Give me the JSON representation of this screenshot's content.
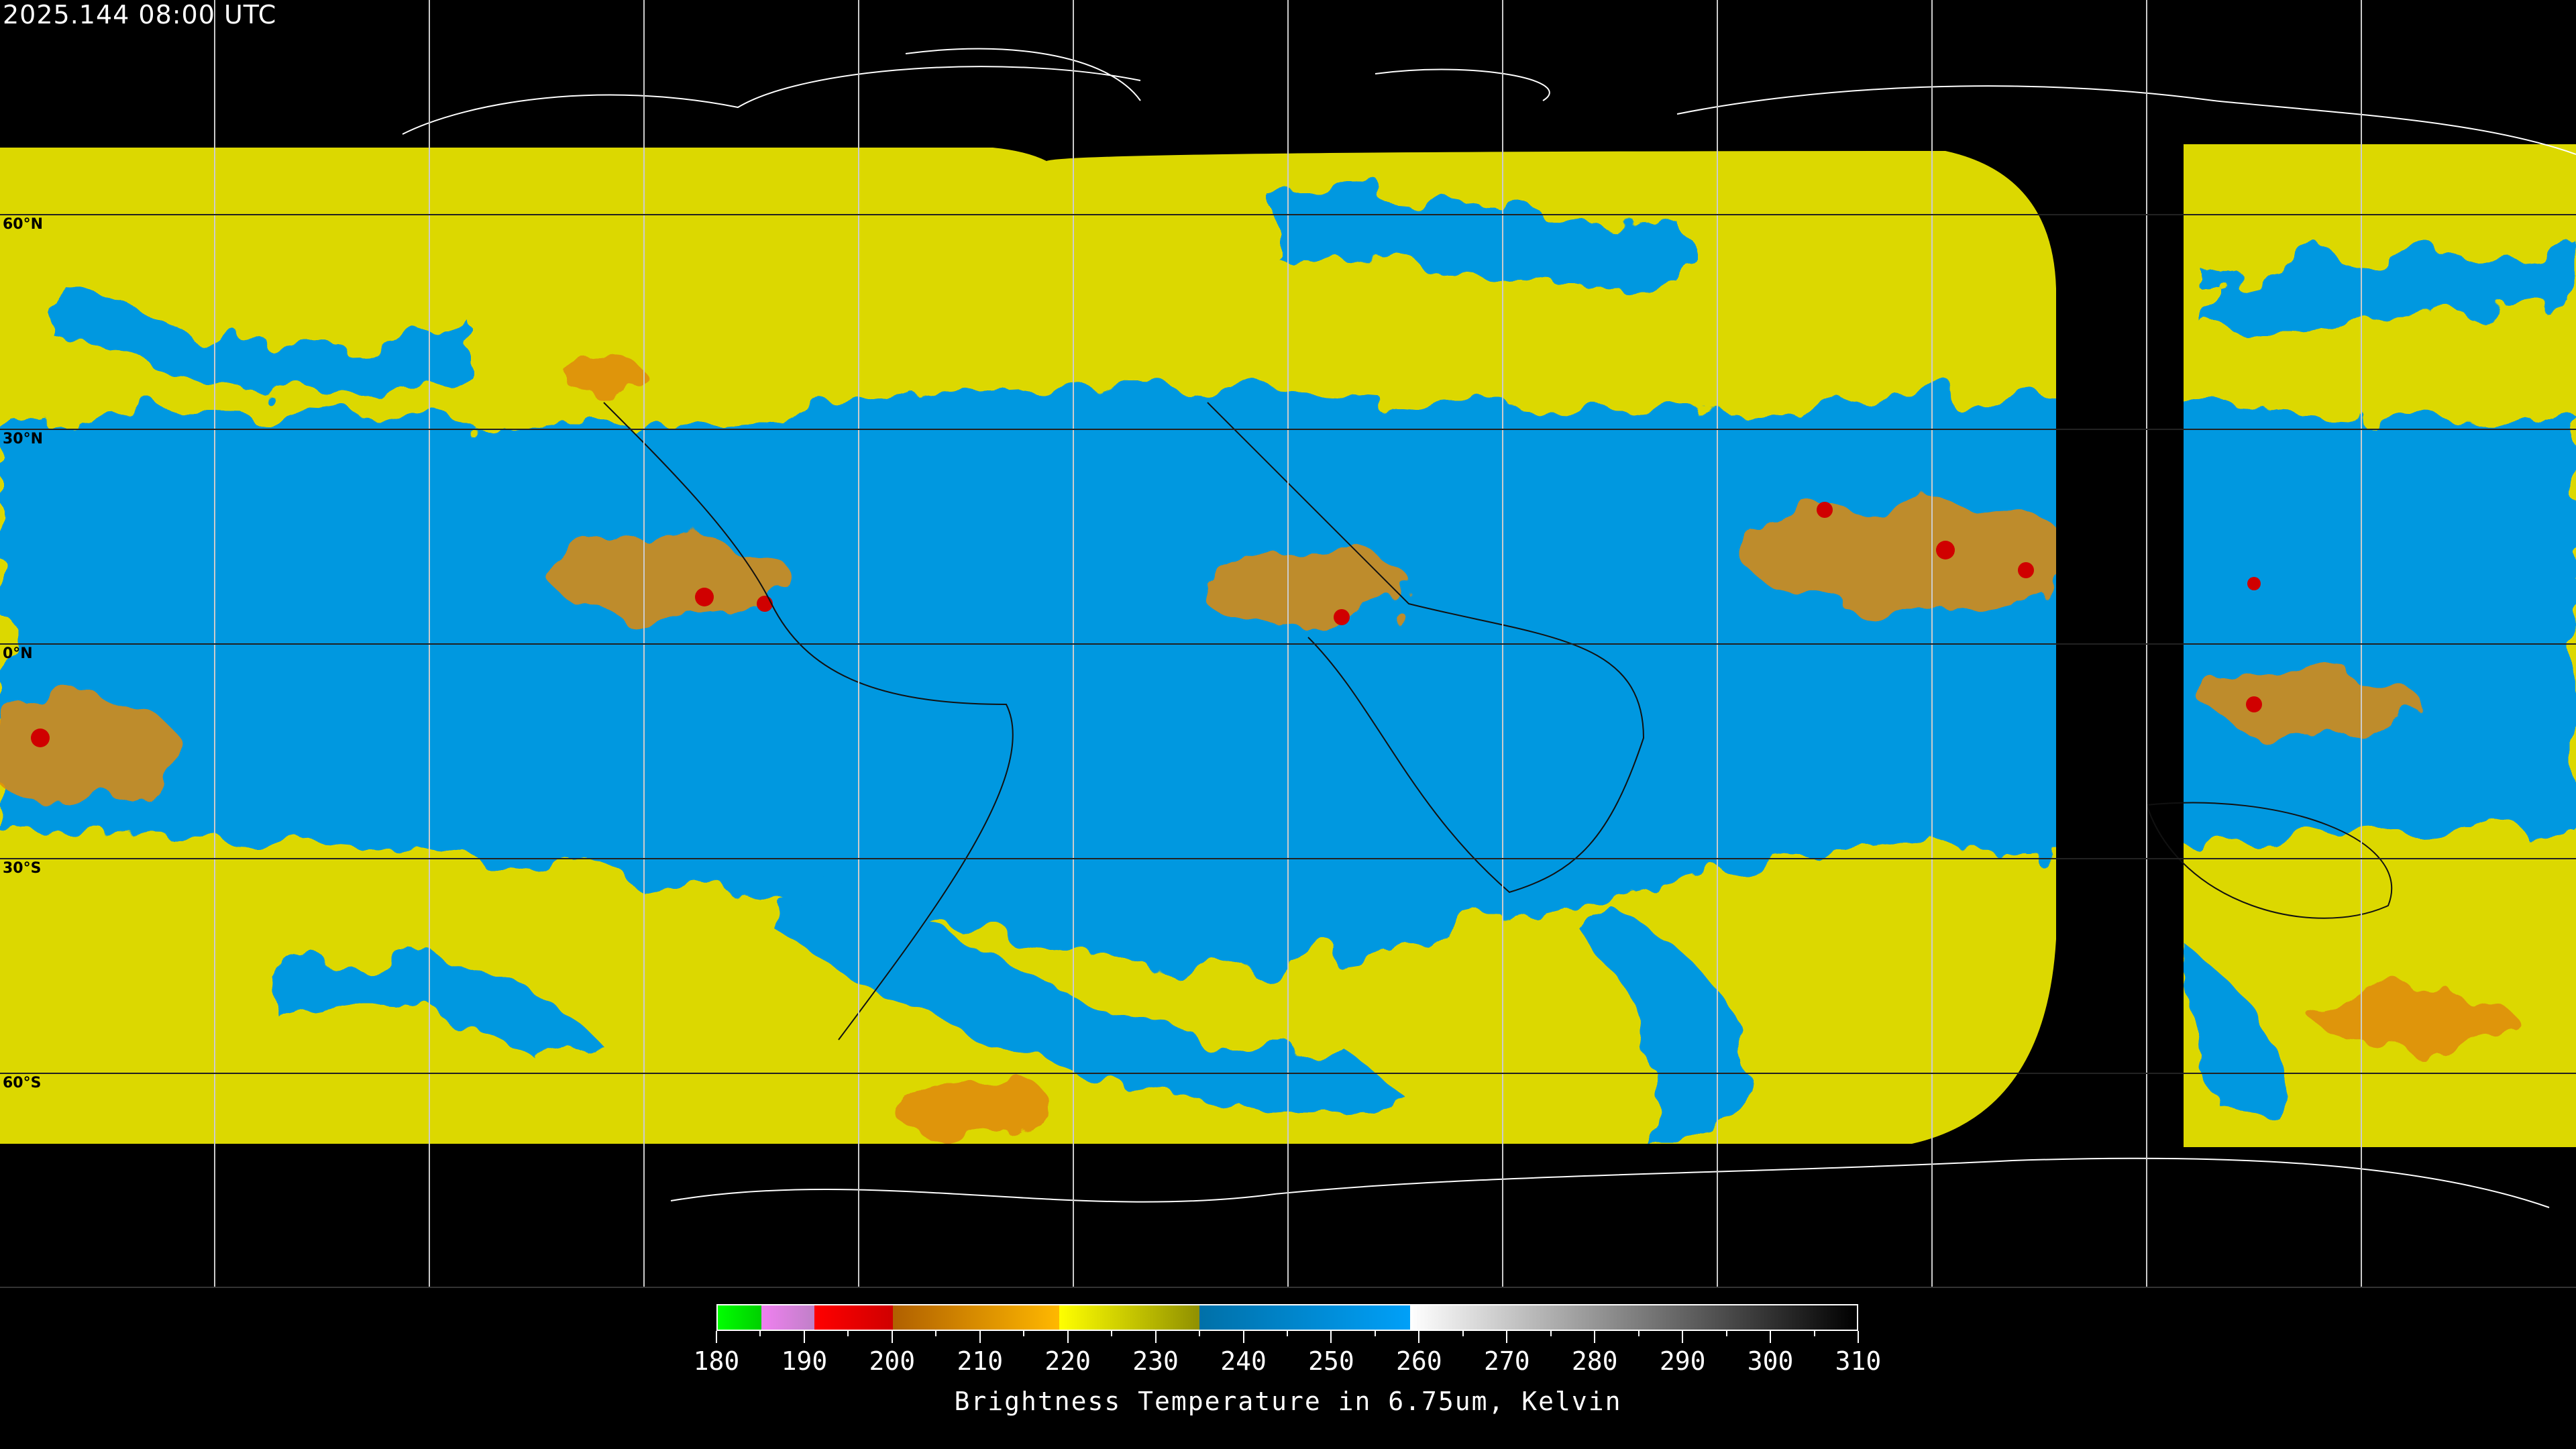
{
  "header": {
    "timestamp": "2025.144 08:00 UTC"
  },
  "map": {
    "projection": "equirectangular",
    "lat_labels": [
      "60°N",
      "30°N",
      "0°N",
      "30°S",
      "60°S"
    ],
    "grid_spacing_degrees": 30,
    "colors": {
      "background": "#000000",
      "coastline": "#ffffff",
      "grid": "#ffffff",
      "moist": "#0099e6",
      "dry": "#e3e000"
    }
  },
  "colorbar": {
    "title": "Brightness Temperature in 6.75um, Kelvin",
    "min": 180,
    "max": 310,
    "tick_labels": [
      "180",
      "190",
      "200",
      "210",
      "220",
      "230",
      "240",
      "250",
      "260",
      "270",
      "280",
      "290",
      "300",
      "310"
    ],
    "segments": [
      {
        "from": 180,
        "to": 185,
        "colors": [
          "#00ff00",
          "#00d000"
        ]
      },
      {
        "from": 185,
        "to": 191,
        "colors": [
          "#f080f0",
          "#c080c8"
        ]
      },
      {
        "from": 191,
        "to": 200,
        "colors": [
          "#ff0000",
          "#d00000"
        ]
      },
      {
        "from": 200,
        "to": 219,
        "colors": [
          "#b06000",
          "#ffb800"
        ]
      },
      {
        "from": 219,
        "to": 235,
        "colors": [
          "#ffff00",
          "#909000"
        ]
      },
      {
        "from": 235,
        "to": 259,
        "colors": [
          "#0070a8",
          "#00a0f8"
        ]
      },
      {
        "from": 259,
        "to": 310,
        "colors": [
          "#ffffff",
          "#000000"
        ]
      }
    ]
  }
}
